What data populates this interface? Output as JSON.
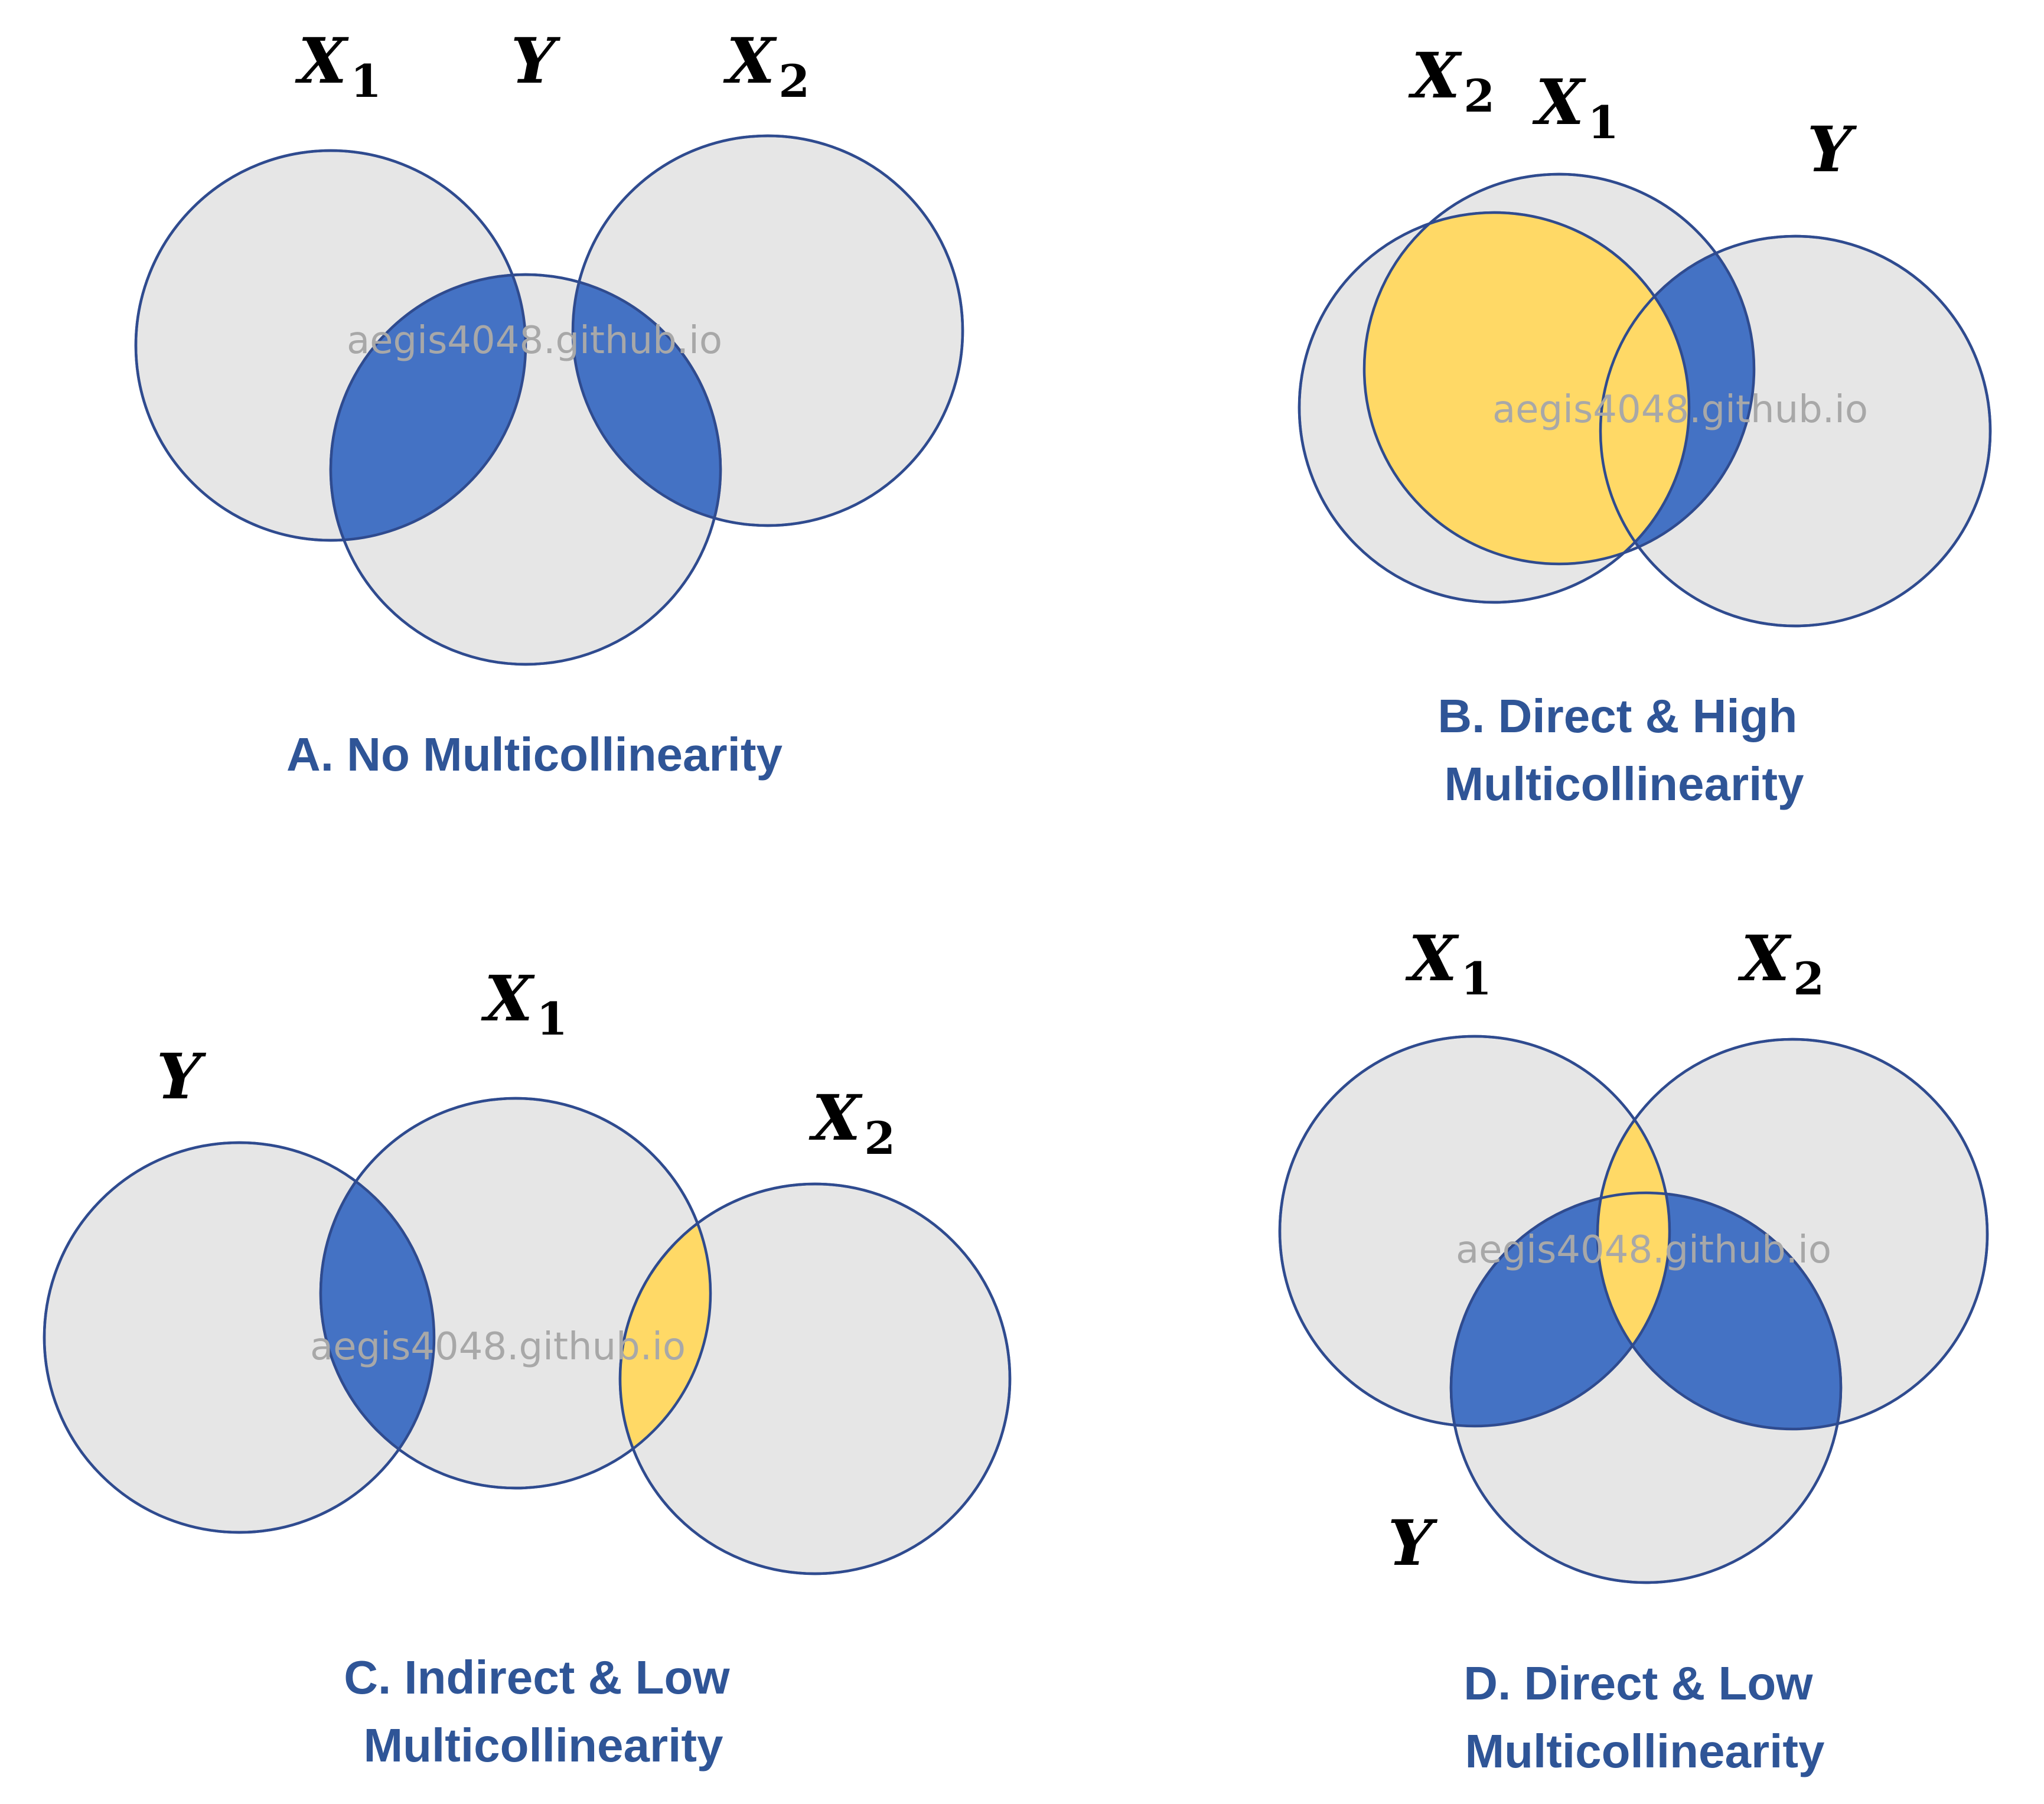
{
  "watermark": "aegis4048.github.io",
  "colors": {
    "circle_fill": "#e6e6e6",
    "circle_stroke": "#2f4b8f",
    "overlap_with_y": "#4472c4",
    "predictor_overlap": "#ffd966",
    "caption": "#2f5597",
    "watermark": "#a8a8a8"
  },
  "panels": [
    {
      "id": "A",
      "caption_lines": [
        "A. No Multicollinearity"
      ],
      "labels": [
        {
          "name": "x1",
          "base": "X",
          "sub": "1"
        },
        {
          "name": "y",
          "base": "Y",
          "sub": ""
        },
        {
          "name": "x2",
          "base": "X",
          "sub": "2"
        }
      ]
    },
    {
      "id": "B",
      "caption_lines": [
        "B. Direct & High",
        "Multicollinearity"
      ],
      "labels": [
        {
          "name": "x2",
          "base": "X",
          "sub": "2"
        },
        {
          "name": "x1",
          "base": "X",
          "sub": "1"
        },
        {
          "name": "y",
          "base": "Y",
          "sub": ""
        }
      ]
    },
    {
      "id": "C",
      "caption_lines": [
        "C. Indirect & Low",
        "Multicollinearity"
      ],
      "labels": [
        {
          "name": "x1",
          "base": "X",
          "sub": "1"
        },
        {
          "name": "y",
          "base": "Y",
          "sub": ""
        },
        {
          "name": "x2",
          "base": "X",
          "sub": "2"
        }
      ]
    },
    {
      "id": "D",
      "caption_lines": [
        "D. Direct & Low",
        "Multicollinearity"
      ],
      "labels": [
        {
          "name": "x1",
          "base": "X",
          "sub": "1"
        },
        {
          "name": "x2",
          "base": "X",
          "sub": "2"
        },
        {
          "name": "y",
          "base": "Y",
          "sub": ""
        }
      ]
    }
  ]
}
